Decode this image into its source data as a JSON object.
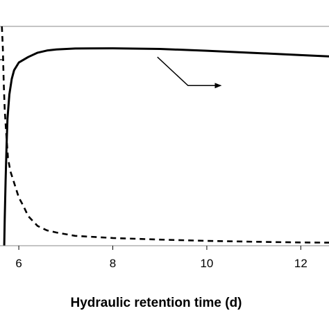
{
  "chart_data": {
    "type": "line",
    "title": "",
    "xlabel": "Hydraulic retention time (d)",
    "ylabel": "",
    "xlim": [
      5.6,
      12.6
    ],
    "ylim": [
      0,
      1
    ],
    "x_ticks": [
      6,
      8,
      10,
      12
    ],
    "grid": false,
    "legend": "none",
    "series": [
      {
        "style": "solid",
        "color": "#000000",
        "points": [
          [
            5.69,
            0.0
          ],
          [
            5.7,
            0.12
          ],
          [
            5.72,
            0.3
          ],
          [
            5.74,
            0.46
          ],
          [
            5.76,
            0.58
          ],
          [
            5.8,
            0.69
          ],
          [
            5.85,
            0.76
          ],
          [
            5.9,
            0.8
          ],
          [
            6.0,
            0.835
          ],
          [
            6.2,
            0.86
          ],
          [
            6.4,
            0.88
          ],
          [
            6.6,
            0.89
          ],
          [
            6.8,
            0.895
          ],
          [
            7.2,
            0.899
          ],
          [
            8.0,
            0.9
          ],
          [
            9.0,
            0.897
          ],
          [
            10.0,
            0.889
          ],
          [
            11.0,
            0.879
          ],
          [
            12.0,
            0.869
          ],
          [
            12.6,
            0.863
          ]
        ]
      },
      {
        "style": "dashed",
        "color": "#000000",
        "points": [
          [
            5.64,
            1.0
          ],
          [
            5.66,
            0.9
          ],
          [
            5.68,
            0.74
          ],
          [
            5.7,
            0.62
          ],
          [
            5.73,
            0.52
          ],
          [
            5.77,
            0.4
          ],
          [
            5.82,
            0.34
          ],
          [
            5.88,
            0.3
          ],
          [
            6.0,
            0.22
          ],
          [
            6.1,
            0.18
          ],
          [
            6.2,
            0.135
          ],
          [
            6.4,
            0.09
          ],
          [
            6.6,
            0.07
          ],
          [
            6.8,
            0.06
          ],
          [
            7.2,
            0.045
          ],
          [
            8.0,
            0.035
          ],
          [
            9.0,
            0.028
          ],
          [
            10.0,
            0.022
          ],
          [
            11.0,
            0.018
          ],
          [
            12.0,
            0.015
          ],
          [
            12.6,
            0.014
          ]
        ]
      }
    ],
    "annotations": [
      {
        "type": "arrow",
        "points": [
          [
            8.95,
            0.86
          ],
          [
            9.6,
            0.73
          ],
          [
            10.3,
            0.73
          ]
        ]
      }
    ]
  }
}
